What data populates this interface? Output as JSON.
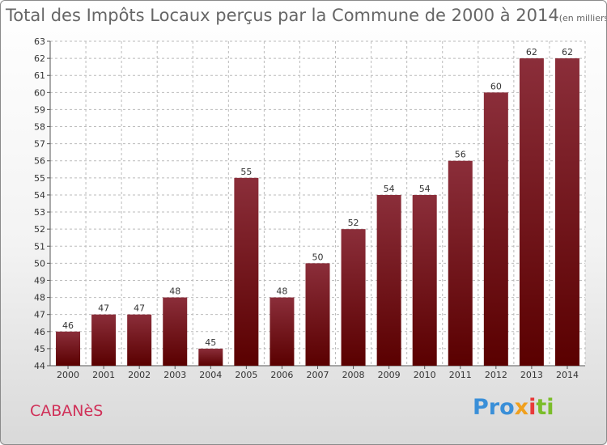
{
  "chart_data": {
    "type": "bar",
    "title": "Total des Impôts Locaux perçus par la Commune de 2000 à 2014",
    "title_unit": "(en milliers d'€)",
    "categories": [
      "2000",
      "2001",
      "2002",
      "2003",
      "2004",
      "2005",
      "2006",
      "2007",
      "2008",
      "2009",
      "2010",
      "2011",
      "2012",
      "2013",
      "2014"
    ],
    "values": [
      46,
      47,
      47,
      48,
      45,
      55,
      48,
      50,
      52,
      54,
      54,
      56,
      60,
      62,
      62
    ],
    "ylim": [
      44,
      63
    ],
    "yticks": [
      44,
      45,
      46,
      47,
      48,
      49,
      50,
      51,
      52,
      53,
      54,
      55,
      56,
      57,
      58,
      59,
      60,
      61,
      62,
      63
    ],
    "xlabel": "",
    "ylabel": "",
    "grid": "horizontal-dashed",
    "bar_color_top": "#8b2e3a",
    "bar_color_bottom": "#5a0000"
  },
  "footer": {
    "commune": "CABANèS",
    "logo_parts": [
      "Pro",
      "x",
      "i",
      "ti"
    ]
  },
  "colors": {
    "title": "#666666",
    "commune": "#d03058",
    "grid": "#bbbbbb"
  }
}
